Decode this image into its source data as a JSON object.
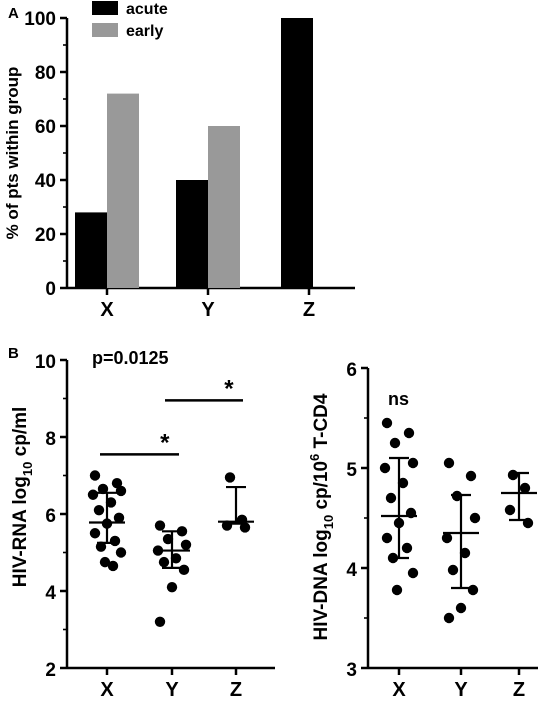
{
  "chart_data": [
    {
      "type": "bar",
      "panel_label": "A",
      "categories": [
        "X",
        "Y",
        "Z"
      ],
      "series": [
        {
          "name": "acute",
          "color": "#000000",
          "values": [
            28,
            40,
            100
          ]
        },
        {
          "name": "early",
          "color": "#999999",
          "values": [
            72,
            60,
            null
          ]
        }
      ],
      "ylabel": "% of pts within group",
      "ylim": [
        0,
        100
      ],
      "yticks": [
        0,
        20,
        40,
        60,
        80,
        100
      ],
      "legend": "top-left"
    },
    {
      "type": "scatter",
      "panel_label": "B",
      "categories": [
        "X",
        "Y",
        "Z"
      ],
      "ylabel": {
        "pre": "HIV-RNA log",
        "sub": "10",
        "post": " cp/ml"
      },
      "ylim": [
        2,
        10
      ],
      "yticks": [
        2,
        4,
        6,
        8,
        10
      ],
      "annotation": "p=0.0125",
      "significance": [
        {
          "from": "X",
          "to": "Y",
          "y": 7.55,
          "label": "*"
        },
        {
          "from": "Y",
          "to": "Z",
          "y": 8.95,
          "label": "*"
        }
      ],
      "groups": [
        {
          "name": "X",
          "median": 5.78,
          "iqr": [
            5.25,
            6.55
          ],
          "points": [
            7.0,
            6.8,
            6.65,
            6.6,
            6.5,
            6.3,
            6.1,
            5.9,
            5.75,
            5.5,
            5.3,
            5.15,
            5.0,
            4.75,
            4.65
          ]
        },
        {
          "name": "Y",
          "median": 5.05,
          "iqr": [
            4.6,
            5.55
          ],
          "points": [
            5.7,
            5.55,
            5.35,
            5.2,
            5.05,
            4.85,
            4.75,
            4.55,
            4.1,
            3.2
          ]
        },
        {
          "name": "Z",
          "median": 5.8,
          "iqr": [
            5.75,
            6.7
          ],
          "points": [
            6.95,
            5.85,
            5.7,
            5.65
          ]
        }
      ]
    },
    {
      "type": "scatter",
      "categories": [
        "X",
        "Y",
        "Z"
      ],
      "ylabel": {
        "pre": "HIV-DNA log",
        "sub": "10",
        "mid": " cp/10",
        "sup": "6",
        "post": " T-CD4"
      },
      "ylim": [
        3,
        6
      ],
      "yticks": [
        3,
        4,
        5,
        6
      ],
      "annotation": "ns",
      "groups": [
        {
          "name": "X",
          "median": 4.52,
          "iqr": [
            4.1,
            5.1
          ],
          "points": [
            5.45,
            5.35,
            5.25,
            5.05,
            5.0,
            4.85,
            4.7,
            4.55,
            4.45,
            4.3,
            4.2,
            4.1,
            3.95,
            3.78
          ]
        },
        {
          "name": "Y",
          "median": 4.35,
          "iqr": [
            3.8,
            4.73
          ],
          "points": [
            5.05,
            4.92,
            4.72,
            4.5,
            4.3,
            4.15,
            3.98,
            3.78,
            3.6,
            3.5
          ]
        },
        {
          "name": "Z",
          "median": 4.75,
          "iqr": [
            4.48,
            4.95
          ],
          "points": [
            4.93,
            4.8,
            4.58,
            4.45
          ]
        }
      ]
    }
  ]
}
